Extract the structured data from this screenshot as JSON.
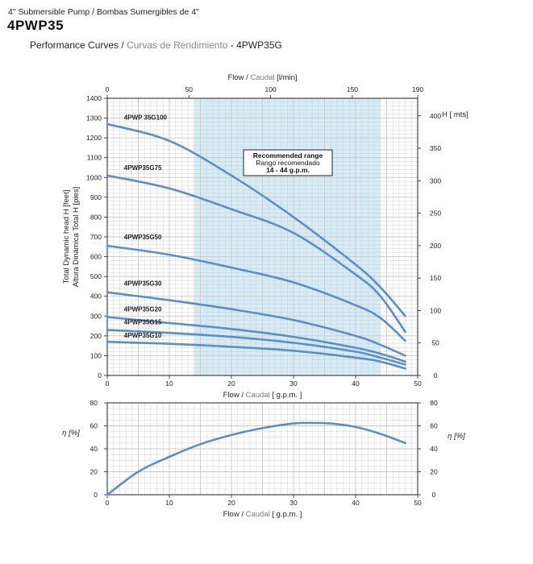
{
  "header": {
    "subtitle": "4\" Submersible Pump / Bombas Sumergibles de 4\"",
    "model": "4PWP35",
    "performance_en": "Performance Curves",
    "performance_sep": " / ",
    "performance_es": "Curvas de Rendimiento",
    "performance_model": " - 4PWP35G"
  },
  "colors": {
    "curve": "#5b8fcc",
    "recommended_band": "#d6ecf7",
    "grid": "#c8c8c8",
    "axis": "#222222"
  },
  "chart_data": [
    {
      "type": "line",
      "title": "",
      "top_axis_label_en": "Flow",
      "top_axis_label_sep": " / ",
      "top_axis_label_es": "Caudal",
      "top_axis_unit": " [l/min]",
      "top_axis_ticks": [
        "0",
        "50",
        "100",
        "150",
        "190"
      ],
      "top_axis_range": [
        0,
        190
      ],
      "xlabel_en": "Flow",
      "xlabel_es": "Caudal",
      "xlabel_unit": "[ g.p.m. ]",
      "x_ticks": [
        "0",
        "10",
        "20",
        "30",
        "40",
        "50"
      ],
      "xlim": [
        0,
        50
      ],
      "ylabel_line1": "Total Dynamic head H [feet]",
      "ylabel_line2": "Altura Dinámica Total H [pies]",
      "y_ticks": [
        "0",
        "100",
        "200",
        "300",
        "400",
        "500",
        "600",
        "700",
        "800",
        "900",
        "1000",
        "1100",
        "1200",
        "1300",
        "1400"
      ],
      "ylim": [
        0,
        1400
      ],
      "right_axis_label": "H [ mts]",
      "right_ticks": [
        "0",
        "50",
        "100",
        "150",
        "200",
        "250",
        "300",
        "350",
        "400"
      ],
      "right_axis_range": [
        0,
        427
      ],
      "grid": true,
      "recommended_range": {
        "from": 14,
        "to": 44,
        "label_en": "Recommended range",
        "label_es": "Rango recomendado",
        "label_value": "14 - 44 g.p.m."
      },
      "series": [
        {
          "name": "4PWP 35G100",
          "x": [
            0,
            10,
            20,
            30,
            40,
            44,
            48
          ],
          "values": [
            1270,
            1185,
            1010,
            800,
            560,
            445,
            300
          ]
        },
        {
          "name": "4PWP35G75",
          "x": [
            0,
            10,
            20,
            30,
            40,
            44,
            48
          ],
          "values": [
            1010,
            945,
            840,
            720,
            510,
            400,
            220
          ]
        },
        {
          "name": "4PWP35G50",
          "x": [
            0,
            10,
            20,
            30,
            40,
            44,
            48
          ],
          "values": [
            655,
            610,
            545,
            470,
            355,
            290,
            175
          ]
        },
        {
          "name": "4PWP35G30",
          "x": [
            0,
            10,
            20,
            30,
            40,
            44,
            48
          ],
          "values": [
            420,
            380,
            335,
            280,
            200,
            155,
            100
          ]
        },
        {
          "name": "4PWP35G20",
          "x": [
            0,
            10,
            20,
            30,
            40,
            44,
            48
          ],
          "values": [
            295,
            265,
            235,
            195,
            140,
            110,
            70
          ]
        },
        {
          "name": "4PWP35G15",
          "x": [
            0,
            10,
            20,
            30,
            40,
            44,
            48
          ],
          "values": [
            230,
            215,
            195,
            165,
            120,
            90,
            55
          ]
        },
        {
          "name": "4PWP35G10",
          "x": [
            0,
            10,
            20,
            30,
            40,
            44,
            48
          ],
          "values": [
            170,
            160,
            145,
            125,
            90,
            70,
            35
          ]
        }
      ]
    },
    {
      "type": "line",
      "title": "",
      "xlabel_en": "Flow",
      "xlabel_es": "Caudal",
      "xlabel_unit": "[ g.p.m. ]",
      "x_ticks": [
        "0",
        "10",
        "20",
        "30",
        "40",
        "50"
      ],
      "xlim": [
        0,
        50
      ],
      "ylabel": "η [%]",
      "right_ylabel": "η [%]",
      "y_ticks": [
        "0",
        "20",
        "40",
        "60",
        "80"
      ],
      "ylim": [
        0,
        80
      ],
      "grid": true,
      "series": [
        {
          "x": [
            0,
            5,
            10,
            15,
            20,
            25,
            30,
            33,
            36,
            40,
            44,
            48
          ],
          "values": [
            0,
            20,
            33,
            44,
            52,
            58,
            62,
            62.5,
            62,
            59,
            53,
            45
          ]
        }
      ]
    }
  ]
}
